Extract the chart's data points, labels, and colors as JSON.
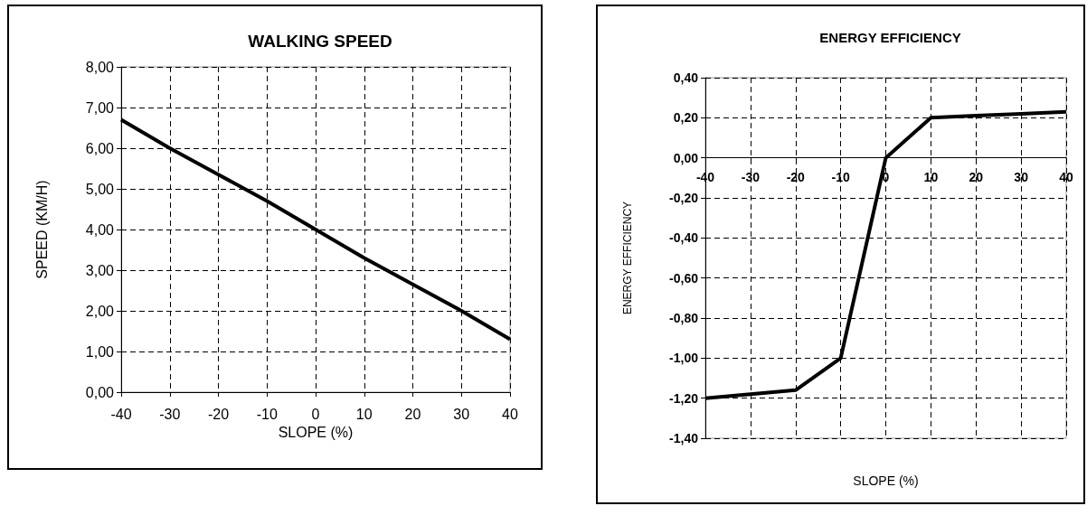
{
  "chart_data": [
    {
      "type": "line",
      "title": "WALKING SPEED",
      "xlabel": "SLOPE (%)",
      "ylabel": "SPEED (KM/H)",
      "color": "#000000",
      "marker": "none",
      "grid": true,
      "x": [
        -40,
        -30,
        -20,
        -10,
        0,
        10,
        20,
        30,
        40
      ],
      "values": [
        6.7,
        6.0,
        5.35,
        4.7,
        4.0,
        3.3,
        2.65,
        2.0,
        1.3
      ],
      "xlim": [
        -40,
        40
      ],
      "xticks": [
        -40,
        -30,
        -20,
        -10,
        0,
        10,
        20,
        30,
        40
      ],
      "ylim": [
        0,
        8
      ],
      "yticks": [
        {
          "value": 0,
          "label": "0,00"
        },
        {
          "value": 1,
          "label": "1,00"
        },
        {
          "value": 2,
          "label": "2,00"
        },
        {
          "value": 3,
          "label": "3,00"
        },
        {
          "value": 4,
          "label": "4,00"
        },
        {
          "value": 5,
          "label": "5,00"
        },
        {
          "value": 6,
          "label": "6,00"
        },
        {
          "value": 7,
          "label": "7,00"
        },
        {
          "value": 8,
          "label": "8,00"
        }
      ]
    },
    {
      "type": "line",
      "title": "ENERGY EFFICIENCY",
      "xlabel": "SLOPE (%)",
      "ylabel": "ENERGY EFFICIENCY",
      "color": "#000000",
      "marker": "none",
      "grid": true,
      "x": [
        -40,
        -30,
        -20,
        -10,
        0,
        10,
        20,
        30,
        40
      ],
      "values": [
        -1.2,
        -1.18,
        -1.16,
        -1.0,
        0.0,
        0.2,
        0.21,
        0.22,
        0.23
      ],
      "xlim": [
        -40,
        40
      ],
      "xticks": [
        -40,
        -30,
        -20,
        -10,
        0,
        10,
        20,
        30,
        40
      ],
      "ylim": [
        -1.4,
        0.4
      ],
      "yticks": [
        {
          "value": -1.4,
          "label": "-1,40"
        },
        {
          "value": -1.2,
          "label": "-1,20"
        },
        {
          "value": -1,
          "label": "-1,00"
        },
        {
          "value": -0.8,
          "label": "-0,80"
        },
        {
          "value": -0.6,
          "label": "-0,60"
        },
        {
          "value": -0.4,
          "label": "-0,40"
        },
        {
          "value": -0.2,
          "label": "-0,20"
        },
        {
          "value": 0,
          "label": "0,00"
        },
        {
          "value": 0.2,
          "label": "0,20"
        },
        {
          "value": 0.4,
          "label": "0,40"
        }
      ]
    }
  ]
}
